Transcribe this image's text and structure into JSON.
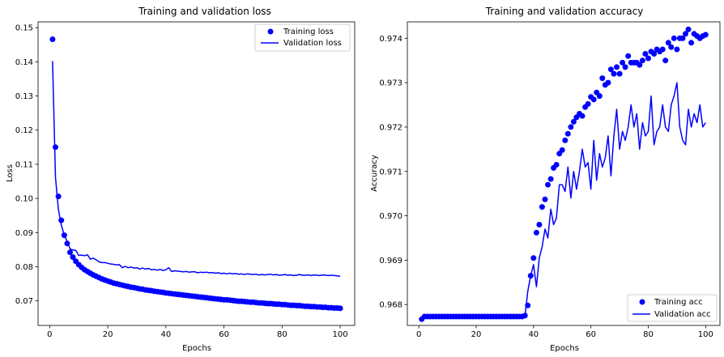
{
  "chart_data": [
    {
      "type": "line",
      "title": "Training and validation loss",
      "xlabel": "Epochs",
      "ylabel": "Loss",
      "xlim": [
        -4,
        105
      ],
      "ylim": [
        0.0628,
        0.1517
      ],
      "xticks": [
        0,
        20,
        40,
        60,
        80,
        100
      ],
      "yticks": [
        0.07,
        0.08,
        0.09,
        0.1,
        0.11,
        0.12,
        0.13,
        0.14,
        0.15
      ],
      "ytick_labels": [
        "0.07",
        "0.08",
        "0.09",
        "0.10",
        "0.11",
        "0.12",
        "0.13",
        "0.14",
        "0.15"
      ],
      "grid": false,
      "legend_position": "top-right",
      "color": "#0000ff",
      "series": [
        {
          "name": "Training loss",
          "style": "markers",
          "x": [
            1,
            2,
            3,
            4,
            5,
            6,
            7,
            8,
            9,
            10,
            11,
            12,
            13,
            14,
            15,
            16,
            17,
            18,
            19,
            20,
            21,
            22,
            23,
            24,
            25,
            26,
            27,
            28,
            29,
            30,
            31,
            32,
            33,
            34,
            35,
            36,
            37,
            38,
            39,
            40,
            41,
            42,
            43,
            44,
            45,
            46,
            47,
            48,
            49,
            50,
            51,
            52,
            53,
            54,
            55,
            56,
            57,
            58,
            59,
            60,
            61,
            62,
            63,
            64,
            65,
            66,
            67,
            68,
            69,
            70,
            71,
            72,
            73,
            74,
            75,
            76,
            77,
            78,
            79,
            80,
            81,
            82,
            83,
            84,
            85,
            86,
            87,
            88,
            89,
            90,
            91,
            92,
            93,
            94,
            95,
            96,
            97,
            98,
            99,
            100
          ],
          "values": [
            0.1466,
            0.115,
            0.1006,
            0.0936,
            0.0892,
            0.0868,
            0.0842,
            0.0828,
            0.0816,
            0.0806,
            0.0798,
            0.0791,
            0.0786,
            0.0781,
            0.0776,
            0.0772,
            0.0768,
            0.0764,
            0.0761,
            0.0758,
            0.0755,
            0.0752,
            0.075,
            0.0748,
            0.0746,
            0.0744,
            0.0742,
            0.074,
            0.0739,
            0.0737,
            0.0735,
            0.0734,
            0.0732,
            0.0731,
            0.073,
            0.0728,
            0.0727,
            0.0726,
            0.0725,
            0.0723,
            0.0722,
            0.0721,
            0.072,
            0.0719,
            0.0718,
            0.0717,
            0.0716,
            0.0715,
            0.0714,
            0.0713,
            0.0712,
            0.0711,
            0.071,
            0.0709,
            0.0708,
            0.0707,
            0.0706,
            0.0705,
            0.0704,
            0.0703,
            0.0703,
            0.0702,
            0.0701,
            0.07,
            0.0699,
            0.0699,
            0.0698,
            0.0697,
            0.0696,
            0.0696,
            0.0695,
            0.0694,
            0.0694,
            0.0693,
            0.0692,
            0.0692,
            0.0691,
            0.069,
            0.069,
            0.0689,
            0.0689,
            0.0688,
            0.0687,
            0.0687,
            0.0686,
            0.0686,
            0.0685,
            0.0684,
            0.0684,
            0.0683,
            0.0683,
            0.0682,
            0.0682,
            0.0681,
            0.0681,
            0.068,
            0.068,
            0.0679,
            0.0679,
            0.0678
          ]
        },
        {
          "name": "Validation loss",
          "style": "line",
          "x": [
            1,
            2,
            3,
            4,
            5,
            6,
            7,
            8,
            9,
            10,
            11,
            12,
            13,
            14,
            15,
            16,
            17,
            18,
            19,
            20,
            21,
            22,
            23,
            24,
            25,
            26,
            27,
            28,
            29,
            30,
            31,
            32,
            33,
            34,
            35,
            36,
            37,
            38,
            39,
            40,
            41,
            42,
            43,
            44,
            45,
            46,
            47,
            48,
            49,
            50,
            51,
            52,
            53,
            54,
            55,
            56,
            57,
            58,
            59,
            60,
            61,
            62,
            63,
            64,
            65,
            66,
            67,
            68,
            69,
            70,
            71,
            72,
            73,
            74,
            75,
            76,
            77,
            78,
            79,
            80,
            81,
            82,
            83,
            84,
            85,
            86,
            87,
            88,
            89,
            90,
            91,
            92,
            93,
            94,
            95,
            96,
            97,
            98,
            99,
            100
          ],
          "values": [
            0.1402,
            0.1062,
            0.0968,
            0.0922,
            0.0892,
            0.0875,
            0.0852,
            0.0849,
            0.0848,
            0.0833,
            0.0834,
            0.0832,
            0.0835,
            0.0822,
            0.0825,
            0.082,
            0.0814,
            0.0812,
            0.0812,
            0.081,
            0.0808,
            0.0807,
            0.0805,
            0.0806,
            0.0797,
            0.0801,
            0.0797,
            0.0799,
            0.0796,
            0.0797,
            0.0793,
            0.0796,
            0.0793,
            0.0795,
            0.0791,
            0.0792,
            0.079,
            0.0792,
            0.0789,
            0.0791,
            0.0797,
            0.0786,
            0.0788,
            0.0787,
            0.0786,
            0.0785,
            0.0786,
            0.0784,
            0.0785,
            0.0785,
            0.0782,
            0.0784,
            0.0783,
            0.0784,
            0.0782,
            0.0783,
            0.0781,
            0.0782,
            0.078,
            0.0781,
            0.0779,
            0.0781,
            0.0779,
            0.078,
            0.0778,
            0.0779,
            0.0777,
            0.0779,
            0.0778,
            0.0777,
            0.0778,
            0.0776,
            0.0777,
            0.0776,
            0.0777,
            0.0778,
            0.0776,
            0.0777,
            0.0775,
            0.0776,
            0.0777,
            0.0775,
            0.0776,
            0.0774,
            0.0775,
            0.0777,
            0.0775,
            0.0775,
            0.0776,
            0.0774,
            0.0776,
            0.0775,
            0.0774,
            0.0776,
            0.0775,
            0.0774,
            0.0775,
            0.0774,
            0.0773,
            0.0772
          ]
        }
      ]
    },
    {
      "type": "line",
      "title": "Training and validation accuracy",
      "xlabel": "Epochs",
      "ylabel": "Accuracy",
      "xlim": [
        -4,
        105
      ],
      "ylim": [
        0.96753,
        0.97437
      ],
      "xticks": [
        0,
        20,
        40,
        60,
        80,
        100
      ],
      "yticks": [
        0.968,
        0.969,
        0.97,
        0.971,
        0.972,
        0.973,
        0.974
      ],
      "ytick_labels": [
        "0.968",
        "0.969",
        "0.970",
        "0.971",
        "0.972",
        "0.973",
        "0.974"
      ],
      "grid": false,
      "legend_position": "bottom-right",
      "color": "#0000ff",
      "series": [
        {
          "name": "Training acc",
          "style": "markers",
          "x": [
            1,
            2,
            3,
            4,
            5,
            6,
            7,
            8,
            9,
            10,
            11,
            12,
            13,
            14,
            15,
            16,
            17,
            18,
            19,
            20,
            21,
            22,
            23,
            24,
            25,
            26,
            27,
            28,
            29,
            30,
            31,
            32,
            33,
            34,
            35,
            36,
            37,
            38,
            39,
            40,
            41,
            42,
            43,
            44,
            45,
            46,
            47,
            48,
            49,
            50,
            51,
            52,
            53,
            54,
            55,
            56,
            57,
            58,
            59,
            60,
            61,
            62,
            63,
            64,
            65,
            66,
            67,
            68,
            69,
            70,
            71,
            72,
            73,
            74,
            75,
            76,
            77,
            78,
            79,
            80,
            81,
            82,
            83,
            84,
            85,
            86,
            87,
            88,
            89,
            90,
            91,
            92,
            93,
            94,
            95,
            96,
            97,
            98,
            99,
            100
          ],
          "values": [
            0.96767,
            0.96773,
            0.96773,
            0.96773,
            0.96773,
            0.96773,
            0.96773,
            0.96773,
            0.96773,
            0.96773,
            0.96773,
            0.96773,
            0.96773,
            0.96773,
            0.96773,
            0.96773,
            0.96773,
            0.96773,
            0.96773,
            0.96773,
            0.96773,
            0.96773,
            0.96773,
            0.96773,
            0.96773,
            0.96773,
            0.96773,
            0.96773,
            0.96773,
            0.96773,
            0.96773,
            0.96773,
            0.96773,
            0.96773,
            0.96773,
            0.96773,
            0.96775,
            0.96798,
            0.96865,
            0.96905,
            0.96962,
            0.9698,
            0.9702,
            0.97037,
            0.9707,
            0.97083,
            0.97108,
            0.97115,
            0.9714,
            0.97148,
            0.9717,
            0.97185,
            0.972,
            0.97212,
            0.97222,
            0.9723,
            0.97225,
            0.97245,
            0.97252,
            0.97268,
            0.97262,
            0.97278,
            0.9727,
            0.9731,
            0.97295,
            0.973,
            0.9733,
            0.9732,
            0.97335,
            0.9732,
            0.97345,
            0.97335,
            0.9736,
            0.97345,
            0.97345,
            0.97345,
            0.9734,
            0.9735,
            0.97365,
            0.97355,
            0.9737,
            0.97365,
            0.97375,
            0.9737,
            0.97375,
            0.9735,
            0.9739,
            0.9738,
            0.974,
            0.97375,
            0.974,
            0.974,
            0.9741,
            0.9742,
            0.9739,
            0.9741,
            0.97405,
            0.974,
            0.97405,
            0.97408
          ]
        },
        {
          "name": "Validation acc",
          "style": "line",
          "x": [
            1,
            2,
            3,
            4,
            5,
            6,
            7,
            8,
            9,
            10,
            11,
            12,
            13,
            14,
            15,
            16,
            17,
            18,
            19,
            20,
            21,
            22,
            23,
            24,
            25,
            26,
            27,
            28,
            29,
            30,
            31,
            32,
            33,
            34,
            35,
            36,
            37,
            38,
            39,
            40,
            41,
            42,
            43,
            44,
            45,
            46,
            47,
            48,
            49,
            50,
            51,
            52,
            53,
            54,
            55,
            56,
            57,
            58,
            59,
            60,
            61,
            62,
            63,
            64,
            65,
            66,
            67,
            68,
            69,
            70,
            71,
            72,
            73,
            74,
            75,
            76,
            77,
            78,
            79,
            80,
            81,
            82,
            83,
            84,
            85,
            86,
            87,
            88,
            89,
            90,
            91,
            92,
            93,
            94,
            95,
            96,
            97,
            98,
            99,
            100
          ],
          "values": [
            0.96767,
            0.96773,
            0.96773,
            0.96773,
            0.96773,
            0.96773,
            0.96773,
            0.96773,
            0.96773,
            0.96773,
            0.96773,
            0.96773,
            0.96773,
            0.96773,
            0.96773,
            0.96773,
            0.96773,
            0.96773,
            0.96773,
            0.96773,
            0.96773,
            0.96773,
            0.96773,
            0.96773,
            0.96773,
            0.96773,
            0.96773,
            0.96773,
            0.96773,
            0.96773,
            0.96773,
            0.96773,
            0.96773,
            0.96773,
            0.96773,
            0.96773,
            0.96773,
            0.9683,
            0.96865,
            0.9689,
            0.9684,
            0.96905,
            0.9693,
            0.9697,
            0.9695,
            0.97015,
            0.9698,
            0.96995,
            0.9707,
            0.9707,
            0.97055,
            0.9711,
            0.9704,
            0.971,
            0.9706,
            0.971,
            0.9715,
            0.9711,
            0.9712,
            0.9706,
            0.9717,
            0.9708,
            0.9714,
            0.9711,
            0.9713,
            0.9718,
            0.9709,
            0.9718,
            0.9724,
            0.9715,
            0.9719,
            0.9717,
            0.972,
            0.9725,
            0.972,
            0.9723,
            0.9715,
            0.9721,
            0.9718,
            0.9719,
            0.9727,
            0.9716,
            0.9719,
            0.972,
            0.9725,
            0.972,
            0.9719,
            0.9725,
            0.9727,
            0.973,
            0.972,
            0.9717,
            0.9716,
            0.9724,
            0.972,
            0.9723,
            0.9721,
            0.9725,
            0.972,
            0.9721
          ]
        }
      ]
    }
  ]
}
